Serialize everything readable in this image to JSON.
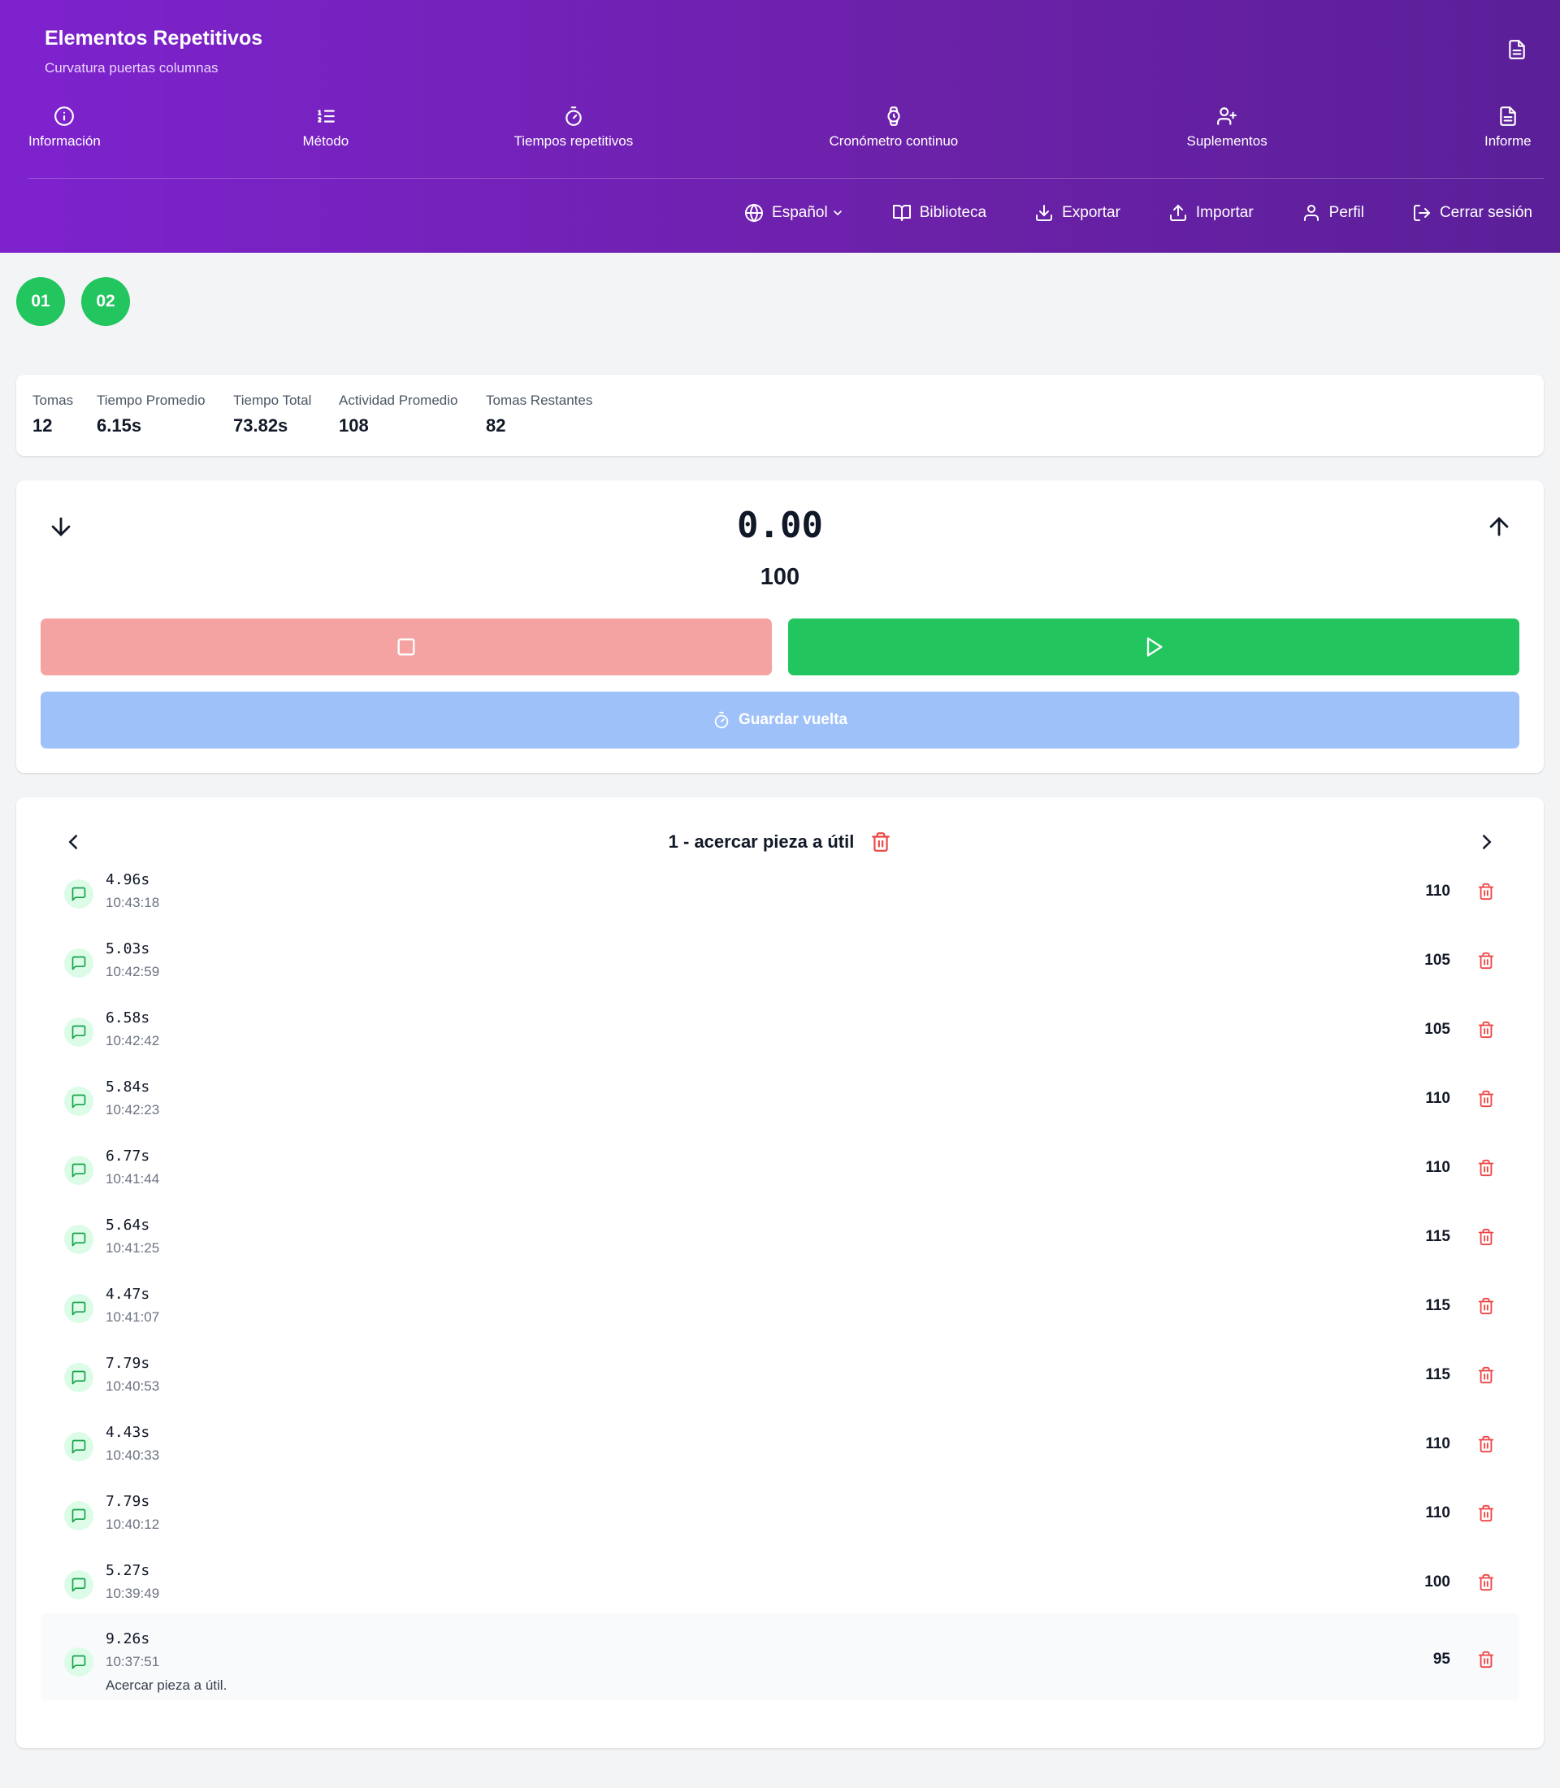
{
  "header": {
    "title": "Elementos Repetitivos",
    "subtitle": "Curvatura puertas columnas",
    "nav": [
      {
        "label": "Información",
        "icon": "info-icon"
      },
      {
        "label": "Método",
        "icon": "list-ordered-icon"
      },
      {
        "label": "Tiempos repetitivos",
        "icon": "timer-icon"
      },
      {
        "label": "Cronómetro continuo",
        "icon": "watch-icon"
      },
      {
        "label": "Suplementos",
        "icon": "user-plus-icon"
      },
      {
        "label": "Informe",
        "icon": "document-icon"
      }
    ],
    "toolbar": {
      "language": "Español",
      "library": "Biblioteca",
      "export": "Exportar",
      "import": "Importar",
      "profile": "Perfil",
      "logout": "Cerrar sesión"
    }
  },
  "elements": [
    "01",
    "02"
  ],
  "stats": [
    {
      "label": "Tomas",
      "value": "12"
    },
    {
      "label": "Tiempo Promedio",
      "value": "6.15s"
    },
    {
      "label": "Tiempo Total",
      "value": "73.82s"
    },
    {
      "label": "Actividad Promedio",
      "value": "108"
    },
    {
      "label": "Tomas Restantes",
      "value": "82"
    }
  ],
  "timer": {
    "value": "0.00",
    "activity": "100",
    "save_lap_label": "Guardar vuelta"
  },
  "laps": {
    "title": "1 - acercar pieza a útil",
    "items": [
      {
        "time": "4.96s",
        "clock": "10:43:18",
        "activity": "110",
        "note": ""
      },
      {
        "time": "5.03s",
        "clock": "10:42:59",
        "activity": "105",
        "note": ""
      },
      {
        "time": "6.58s",
        "clock": "10:42:42",
        "activity": "105",
        "note": ""
      },
      {
        "time": "5.84s",
        "clock": "10:42:23",
        "activity": "110",
        "note": ""
      },
      {
        "time": "6.77s",
        "clock": "10:41:44",
        "activity": "110",
        "note": ""
      },
      {
        "time": "5.64s",
        "clock": "10:41:25",
        "activity": "115",
        "note": ""
      },
      {
        "time": "4.47s",
        "clock": "10:41:07",
        "activity": "115",
        "note": ""
      },
      {
        "time": "7.79s",
        "clock": "10:40:53",
        "activity": "115",
        "note": ""
      },
      {
        "time": "4.43s",
        "clock": "10:40:33",
        "activity": "110",
        "note": ""
      },
      {
        "time": "7.79s",
        "clock": "10:40:12",
        "activity": "110",
        "note": ""
      },
      {
        "time": "5.27s",
        "clock": "10:39:49",
        "activity": "100",
        "note": ""
      },
      {
        "time": "9.26s",
        "clock": "10:37:51",
        "activity": "95",
        "note": "Acercar pieza a útil."
      }
    ]
  },
  "colors": {
    "header_gradient_start": "#7e22ce",
    "accent_green": "#22c55e",
    "stop_red": "#f4a2a2",
    "save_blue": "#9fc1fa",
    "delete_red": "#ef4444"
  }
}
